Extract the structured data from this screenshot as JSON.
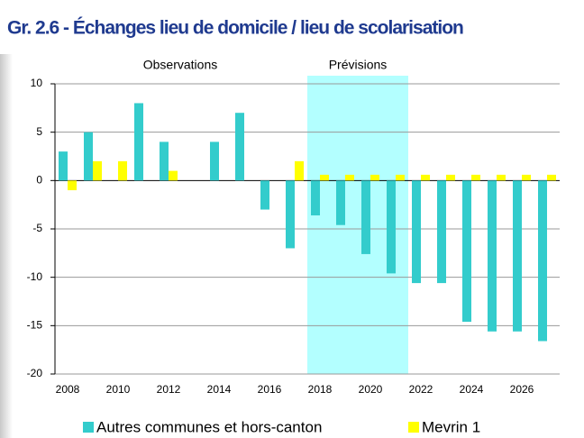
{
  "chart_data": {
    "type": "bar",
    "title": "Gr. 2.6 - Échanges lieu de domicile / lieu de scolarisation",
    "annotations": [
      "Observations",
      "Prévisions"
    ],
    "forecast_span": [
      2017.5,
      2021.5
    ],
    "x": [
      2008,
      2009,
      2010,
      2011,
      2012,
      2013,
      2014,
      2015,
      2016,
      2017,
      2018,
      2019,
      2020,
      2021,
      2022,
      2023,
      2024,
      2025,
      2026,
      2027
    ],
    "xlim": [
      2007.5,
      2027.5
    ],
    "xticks": [
      2008,
      2010,
      2012,
      2014,
      2016,
      2018,
      2020,
      2022,
      2024,
      2026
    ],
    "ylim": [
      -20,
      10
    ],
    "yticks": [
      -20,
      -15,
      -10,
      -5,
      0,
      5,
      10
    ],
    "grid": true,
    "series": [
      {
        "name": "Autres communes et hors-canton",
        "color": "#33cccc",
        "values": [
          3,
          5,
          0,
          8,
          4,
          0,
          4,
          7,
          -3,
          -7,
          -3.6,
          -4.6,
          -7.6,
          -9.6,
          -10.6,
          -10.6,
          -14.6,
          -15.6,
          -15.6,
          -16.6
        ]
      },
      {
        "name": "Mevrin 1",
        "color": "#ffff00",
        "values": [
          -1,
          2,
          2,
          0,
          1,
          0,
          0,
          0,
          0,
          2,
          0.6,
          0.6,
          0.6,
          0.6,
          0.6,
          0.6,
          0.6,
          0.6,
          0.6,
          0.6
        ]
      }
    ]
  }
}
